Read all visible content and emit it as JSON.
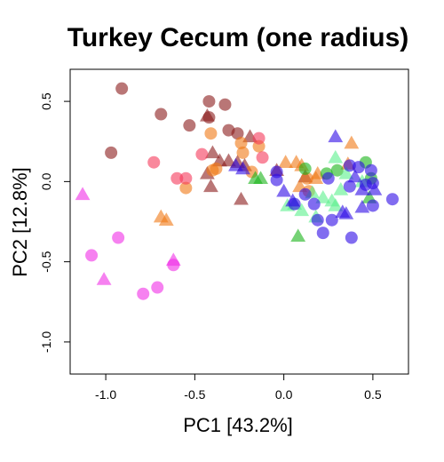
{
  "chart_data": {
    "type": "scatter",
    "title": "Turkey Cecum (one radius)",
    "xlabel": "PC1 [43.2%]",
    "ylabel": "PC2 [12.8%]",
    "xlim": [
      -1.2,
      0.7
    ],
    "ylim": [
      -1.2,
      0.7
    ],
    "xticks": [
      -1.0,
      -0.5,
      0.0,
      0.5
    ],
    "xtick_labels": [
      "-1.0",
      "-0.5",
      "0.0",
      "0.5"
    ],
    "yticks": [
      -1.0,
      -0.5,
      0.0,
      0.5
    ],
    "ytick_labels": [
      "-1.0",
      "-0.5",
      "0.0",
      "0.5"
    ],
    "grid": false,
    "legend": "none",
    "series": [
      {
        "color": "#8B1A1A",
        "points": [
          {
            "x": -0.91,
            "y": 0.58,
            "shape": "circle"
          },
          {
            "x": -0.69,
            "y": 0.42,
            "shape": "circle"
          },
          {
            "x": -0.97,
            "y": 0.18,
            "shape": "circle"
          },
          {
            "x": -0.53,
            "y": 0.35,
            "shape": "circle"
          },
          {
            "x": -0.42,
            "y": 0.5,
            "shape": "circle"
          },
          {
            "x": -0.33,
            "y": 0.48,
            "shape": "circle"
          },
          {
            "x": -0.42,
            "y": 0.4,
            "shape": "circle"
          },
          {
            "x": -0.43,
            "y": 0.41,
            "shape": "triangle"
          },
          {
            "x": -0.31,
            "y": 0.32,
            "shape": "circle"
          },
          {
            "x": -0.26,
            "y": 0.3,
            "shape": "circle"
          },
          {
            "x": -0.19,
            "y": 0.28,
            "shape": "triangle"
          },
          {
            "x": -0.4,
            "y": 0.18,
            "shape": "triangle"
          },
          {
            "x": -0.36,
            "y": 0.13,
            "shape": "triangle"
          },
          {
            "x": -0.31,
            "y": 0.13,
            "shape": "triangle"
          },
          {
            "x": -0.26,
            "y": 0.12,
            "shape": "triangle"
          },
          {
            "x": -0.22,
            "y": 0.1,
            "shape": "triangle"
          },
          {
            "x": -0.43,
            "y": 0.05,
            "shape": "triangle"
          },
          {
            "x": -0.41,
            "y": -0.03,
            "shape": "triangle"
          },
          {
            "x": -0.24,
            "y": -0.11,
            "shape": "triangle"
          },
          {
            "x": -0.04,
            "y": 0.07,
            "shape": "triangle"
          },
          {
            "x": 0.12,
            "y": 0.03,
            "shape": "triangle"
          }
        ]
      },
      {
        "color": "#F07814",
        "points": [
          {
            "x": -0.41,
            "y": 0.3,
            "shape": "circle"
          },
          {
            "x": -0.38,
            "y": 0.08,
            "shape": "circle"
          },
          {
            "x": -0.4,
            "y": 0.07,
            "shape": "circle"
          },
          {
            "x": -0.55,
            "y": -0.04,
            "shape": "circle"
          },
          {
            "x": -0.24,
            "y": 0.24,
            "shape": "circle"
          },
          {
            "x": -0.23,
            "y": 0.18,
            "shape": "circle"
          },
          {
            "x": -0.14,
            "y": 0.22,
            "shape": "circle"
          },
          {
            "x": -0.18,
            "y": 0.06,
            "shape": "circle"
          },
          {
            "x": -0.69,
            "y": -0.22,
            "shape": "triangle"
          },
          {
            "x": -0.66,
            "y": -0.24,
            "shape": "triangle"
          },
          {
            "x": 0.01,
            "y": 0.12,
            "shape": "triangle"
          },
          {
            "x": 0.07,
            "y": 0.12,
            "shape": "triangle"
          },
          {
            "x": 0.1,
            "y": 0.1,
            "shape": "triangle"
          },
          {
            "x": 0.18,
            "y": 0.02,
            "shape": "triangle"
          },
          {
            "x": 0.09,
            "y": -0.03,
            "shape": "triangle"
          },
          {
            "x": 0.19,
            "y": 0.05,
            "shape": "triangle"
          },
          {
            "x": 0.38,
            "y": 0.24,
            "shape": "triangle"
          },
          {
            "x": 0.36,
            "y": 0.11,
            "shape": "triangle"
          },
          {
            "x": 0.14,
            "y": -0.06,
            "shape": "circle"
          },
          {
            "x": 0.13,
            "y": 0.02,
            "shape": "circle"
          }
        ]
      },
      {
        "color": "#F5385A",
        "points": [
          {
            "x": -0.73,
            "y": 0.12,
            "shape": "circle"
          },
          {
            "x": -0.6,
            "y": 0.02,
            "shape": "circle"
          },
          {
            "x": -0.55,
            "y": 0.02,
            "shape": "circle"
          },
          {
            "x": -0.46,
            "y": 0.17,
            "shape": "circle"
          },
          {
            "x": -0.14,
            "y": 0.27,
            "shape": "circle"
          },
          {
            "x": -0.12,
            "y": 0.15,
            "shape": "circle"
          }
        ]
      },
      {
        "color": "#F02DE6",
        "points": [
          {
            "x": -1.13,
            "y": -0.08,
            "shape": "triangle"
          },
          {
            "x": -1.08,
            "y": -0.46,
            "shape": "circle"
          },
          {
            "x": -0.93,
            "y": -0.35,
            "shape": "circle"
          },
          {
            "x": -1.01,
            "y": -0.61,
            "shape": "triangle"
          },
          {
            "x": -0.79,
            "y": -0.7,
            "shape": "circle"
          },
          {
            "x": -0.71,
            "y": -0.66,
            "shape": "circle"
          },
          {
            "x": -0.62,
            "y": -0.49,
            "shape": "triangle"
          },
          {
            "x": -0.62,
            "y": -0.52,
            "shape": "circle"
          }
        ]
      },
      {
        "color": "#19B419",
        "points": [
          {
            "x": -0.16,
            "y": 0.02,
            "shape": "triangle"
          },
          {
            "x": -0.13,
            "y": 0.02,
            "shape": "triangle"
          },
          {
            "x": 0.12,
            "y": 0.08,
            "shape": "circle"
          },
          {
            "x": 0.08,
            "y": -0.34,
            "shape": "triangle"
          },
          {
            "x": 0.24,
            "y": 0.05,
            "shape": "circle"
          },
          {
            "x": 0.3,
            "y": 0.07,
            "shape": "circle"
          },
          {
            "x": 0.46,
            "y": 0.12,
            "shape": "circle"
          },
          {
            "x": 0.49,
            "y": 0.02,
            "shape": "circle"
          },
          {
            "x": 0.48,
            "y": -0.1,
            "shape": "triangle"
          }
        ]
      },
      {
        "color": "#5AF08C",
        "points": [
          {
            "x": 0.02,
            "y": -0.15,
            "shape": "triangle"
          },
          {
            "x": 0.06,
            "y": -0.14,
            "shape": "triangle"
          },
          {
            "x": 0.1,
            "y": -0.18,
            "shape": "triangle"
          },
          {
            "x": 0.16,
            "y": -0.07,
            "shape": "triangle"
          },
          {
            "x": 0.22,
            "y": -0.1,
            "shape": "triangle"
          },
          {
            "x": 0.27,
            "y": -0.12,
            "shape": "triangle"
          },
          {
            "x": 0.29,
            "y": -0.15,
            "shape": "triangle"
          },
          {
            "x": 0.29,
            "y": 0.15,
            "shape": "triangle"
          },
          {
            "x": 0.32,
            "y": -0.05,
            "shape": "triangle"
          },
          {
            "x": 0.35,
            "y": 0.05,
            "shape": "triangle"
          },
          {
            "x": 0.18,
            "y": -0.22,
            "shape": "triangle"
          },
          {
            "x": 0.44,
            "y": 0.0,
            "shape": "triangle"
          }
        ]
      },
      {
        "color": "#2D0AE6",
        "points": [
          {
            "x": -0.27,
            "y": 0.1,
            "shape": "triangle"
          },
          {
            "x": -0.23,
            "y": 0.08,
            "shape": "triangle"
          },
          {
            "x": -0.04,
            "y": 0.06,
            "shape": "circle"
          },
          {
            "x": -0.04,
            "y": 0.01,
            "shape": "circle"
          },
          {
            "x": 0.06,
            "y": -0.14,
            "shape": "circle"
          },
          {
            "x": 0.0,
            "y": -0.06,
            "shape": "triangle"
          },
          {
            "x": 0.05,
            "y": -0.12,
            "shape": "triangle"
          },
          {
            "x": 0.12,
            "y": -0.08,
            "shape": "circle"
          },
          {
            "x": 0.17,
            "y": -0.14,
            "shape": "circle"
          },
          {
            "x": 0.19,
            "y": -0.24,
            "shape": "circle"
          },
          {
            "x": 0.22,
            "y": -0.32,
            "shape": "circle"
          },
          {
            "x": 0.27,
            "y": -0.24,
            "shape": "circle"
          },
          {
            "x": 0.25,
            "y": 0.02,
            "shape": "circle"
          },
          {
            "x": 0.29,
            "y": 0.28,
            "shape": "triangle"
          },
          {
            "x": 0.33,
            "y": -0.19,
            "shape": "triangle"
          },
          {
            "x": 0.35,
            "y": -0.2,
            "shape": "triangle"
          },
          {
            "x": 0.37,
            "y": 0.1,
            "shape": "circle"
          },
          {
            "x": 0.37,
            "y": -0.03,
            "shape": "circle"
          },
          {
            "x": 0.38,
            "y": -0.35,
            "shape": "circle"
          },
          {
            "x": 0.42,
            "y": 0.09,
            "shape": "circle"
          },
          {
            "x": 0.44,
            "y": -0.05,
            "shape": "triangle"
          },
          {
            "x": 0.46,
            "y": -0.02,
            "shape": "circle"
          },
          {
            "x": 0.49,
            "y": 0.07,
            "shape": "circle"
          },
          {
            "x": 0.5,
            "y": -0.01,
            "shape": "circle"
          },
          {
            "x": 0.51,
            "y": -0.05,
            "shape": "triangle"
          },
          {
            "x": 0.61,
            "y": -0.11,
            "shape": "circle"
          },
          {
            "x": 0.44,
            "y": -0.16,
            "shape": "triangle"
          },
          {
            "x": 0.5,
            "y": -0.15,
            "shape": "circle"
          },
          {
            "x": 0.4,
            "y": 0.03,
            "shape": "triangle"
          }
        ]
      }
    ]
  }
}
